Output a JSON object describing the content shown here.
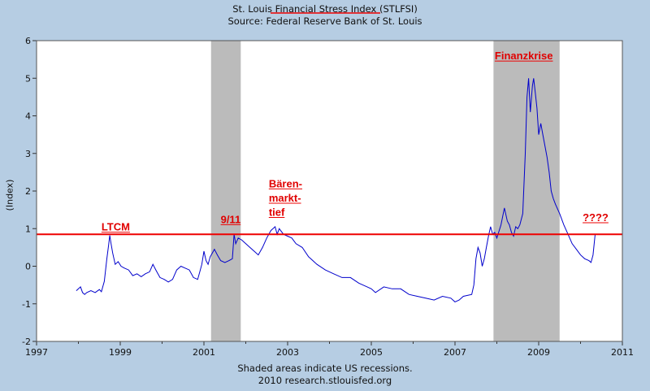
{
  "chart_data": {
    "type": "line",
    "title": "St. Louis Financial Stress Index (STLFSI)",
    "subtitle": "Source: Federal Reserve Bank of St. Louis",
    "xlabel": "",
    "ylabel": "(Index)",
    "footnote": "Shaded areas indicate US recessions.",
    "footnote2": "2010 research.stlouisfed.org",
    "xlim": [
      1997,
      2011
    ],
    "ylim": [
      -2,
      6
    ],
    "x_ticks": [
      "1997",
      "1999",
      "2001",
      "2003",
      "2005",
      "2007",
      "2009",
      "2011"
    ],
    "y_ticks": [
      "-2",
      "-1",
      "0",
      "1",
      "2",
      "3",
      "4",
      "5",
      "6"
    ],
    "recessions": [
      [
        2001.17,
        2001.88
      ],
      [
        2007.92,
        2009.5
      ]
    ],
    "reference_line": 0.85,
    "colors": {
      "series": "#0000cc",
      "reference": "#ee0000",
      "recession": "#bbbbbb",
      "plot_bg": "#ffffff"
    },
    "annotations": [
      {
        "text": "LTCM",
        "x": 1998.55,
        "y": 0.95
      },
      {
        "text": "9/11",
        "x": 2001.4,
        "y": 1.15
      },
      {
        "text": "Bären-",
        "x": 2002.55,
        "y": 2.1
      },
      {
        "text": "markt-",
        "x": 2002.55,
        "y": 1.72
      },
      {
        "text": "tief",
        "x": 2002.55,
        "y": 1.34
      },
      {
        "text": "Finanzkrise",
        "x": 2007.95,
        "y": 5.5
      },
      {
        "text": "????",
        "x": 2010.05,
        "y": 1.2
      }
    ],
    "series": [
      {
        "name": "STLFSI",
        "points": [
          [
            1997.95,
            -0.65
          ],
          [
            1998.0,
            -0.6
          ],
          [
            1998.05,
            -0.55
          ],
          [
            1998.1,
            -0.7
          ],
          [
            1998.15,
            -0.75
          ],
          [
            1998.2,
            -0.7
          ],
          [
            1998.3,
            -0.65
          ],
          [
            1998.4,
            -0.7
          ],
          [
            1998.5,
            -0.62
          ],
          [
            1998.55,
            -0.68
          ],
          [
            1998.62,
            -0.4
          ],
          [
            1998.68,
            0.2
          ],
          [
            1998.72,
            0.55
          ],
          [
            1998.75,
            0.82
          ],
          [
            1998.78,
            0.6
          ],
          [
            1998.82,
            0.35
          ],
          [
            1998.88,
            0.05
          ],
          [
            1998.95,
            0.12
          ],
          [
            1999.02,
            0.0
          ],
          [
            1999.1,
            -0.05
          ],
          [
            1999.2,
            -0.1
          ],
          [
            1999.3,
            -0.25
          ],
          [
            1999.4,
            -0.2
          ],
          [
            1999.5,
            -0.28
          ],
          [
            1999.6,
            -0.2
          ],
          [
            1999.7,
            -0.15
          ],
          [
            1999.78,
            0.05
          ],
          [
            1999.85,
            -0.1
          ],
          [
            1999.95,
            -0.3
          ],
          [
            2000.05,
            -0.35
          ],
          [
            2000.15,
            -0.42
          ],
          [
            2000.25,
            -0.35
          ],
          [
            2000.35,
            -0.1
          ],
          [
            2000.45,
            0.0
          ],
          [
            2000.55,
            -0.05
          ],
          [
            2000.65,
            -0.1
          ],
          [
            2000.75,
            -0.3
          ],
          [
            2000.85,
            -0.35
          ],
          [
            2000.9,
            -0.15
          ],
          [
            2000.95,
            0.05
          ],
          [
            2001.0,
            0.4
          ],
          [
            2001.05,
            0.15
          ],
          [
            2001.1,
            0.05
          ],
          [
            2001.15,
            0.25
          ],
          [
            2001.25,
            0.45
          ],
          [
            2001.32,
            0.3
          ],
          [
            2001.4,
            0.15
          ],
          [
            2001.5,
            0.1
          ],
          [
            2001.6,
            0.15
          ],
          [
            2001.68,
            0.2
          ],
          [
            2001.72,
            0.85
          ],
          [
            2001.76,
            0.6
          ],
          [
            2001.82,
            0.75
          ],
          [
            2001.9,
            0.7
          ],
          [
            2002.0,
            0.6
          ],
          [
            2002.1,
            0.5
          ],
          [
            2002.2,
            0.4
          ],
          [
            2002.3,
            0.3
          ],
          [
            2002.4,
            0.5
          ],
          [
            2002.5,
            0.75
          ],
          [
            2002.6,
            0.95
          ],
          [
            2002.7,
            1.05
          ],
          [
            2002.75,
            0.85
          ],
          [
            2002.8,
            1.0
          ],
          [
            2002.9,
            0.85
          ],
          [
            2003.0,
            0.8
          ],
          [
            2003.1,
            0.75
          ],
          [
            2003.2,
            0.6
          ],
          [
            2003.35,
            0.5
          ],
          [
            2003.5,
            0.25
          ],
          [
            2003.7,
            0.05
          ],
          [
            2003.9,
            -0.1
          ],
          [
            2004.1,
            -0.2
          ],
          [
            2004.3,
            -0.3
          ],
          [
            2004.5,
            -0.3
          ],
          [
            2004.7,
            -0.45
          ],
          [
            2004.9,
            -0.55
          ],
          [
            2005.0,
            -0.6
          ],
          [
            2005.1,
            -0.7
          ],
          [
            2005.3,
            -0.55
          ],
          [
            2005.5,
            -0.6
          ],
          [
            2005.7,
            -0.6
          ],
          [
            2005.9,
            -0.75
          ],
          [
            2006.1,
            -0.8
          ],
          [
            2006.3,
            -0.85
          ],
          [
            2006.5,
            -0.9
          ],
          [
            2006.7,
            -0.8
          ],
          [
            2006.9,
            -0.85
          ],
          [
            2007.0,
            -0.95
          ],
          [
            2007.1,
            -0.9
          ],
          [
            2007.2,
            -0.8
          ],
          [
            2007.4,
            -0.75
          ],
          [
            2007.45,
            -0.5
          ],
          [
            2007.5,
            0.2
          ],
          [
            2007.55,
            0.5
          ],
          [
            2007.6,
            0.35
          ],
          [
            2007.65,
            0.0
          ],
          [
            2007.7,
            0.2
          ],
          [
            2007.75,
            0.5
          ],
          [
            2007.8,
            0.8
          ],
          [
            2007.85,
            1.05
          ],
          [
            2007.9,
            0.85
          ],
          [
            2007.95,
            0.9
          ],
          [
            2008.0,
            0.75
          ],
          [
            2008.1,
            1.1
          ],
          [
            2008.18,
            1.55
          ],
          [
            2008.25,
            1.2
          ],
          [
            2008.3,
            1.1
          ],
          [
            2008.35,
            0.9
          ],
          [
            2008.4,
            0.8
          ],
          [
            2008.45,
            1.05
          ],
          [
            2008.5,
            1.0
          ],
          [
            2008.55,
            1.1
          ],
          [
            2008.62,
            1.4
          ],
          [
            2008.68,
            3.0
          ],
          [
            2008.72,
            4.5
          ],
          [
            2008.76,
            5.0
          ],
          [
            2008.8,
            4.1
          ],
          [
            2008.85,
            4.8
          ],
          [
            2008.88,
            5.0
          ],
          [
            2008.92,
            4.6
          ],
          [
            2008.96,
            4.2
          ],
          [
            2009.0,
            3.5
          ],
          [
            2009.05,
            3.8
          ],
          [
            2009.1,
            3.5
          ],
          [
            2009.15,
            3.2
          ],
          [
            2009.2,
            2.9
          ],
          [
            2009.25,
            2.5
          ],
          [
            2009.3,
            2.0
          ],
          [
            2009.35,
            1.8
          ],
          [
            2009.4,
            1.65
          ],
          [
            2009.5,
            1.4
          ],
          [
            2009.6,
            1.1
          ],
          [
            2009.7,
            0.85
          ],
          [
            2009.8,
            0.6
          ],
          [
            2009.9,
            0.45
          ],
          [
            2010.0,
            0.3
          ],
          [
            2010.1,
            0.2
          ],
          [
            2010.2,
            0.15
          ],
          [
            2010.25,
            0.1
          ],
          [
            2010.3,
            0.3
          ],
          [
            2010.35,
            0.85
          ]
        ]
      }
    ]
  }
}
